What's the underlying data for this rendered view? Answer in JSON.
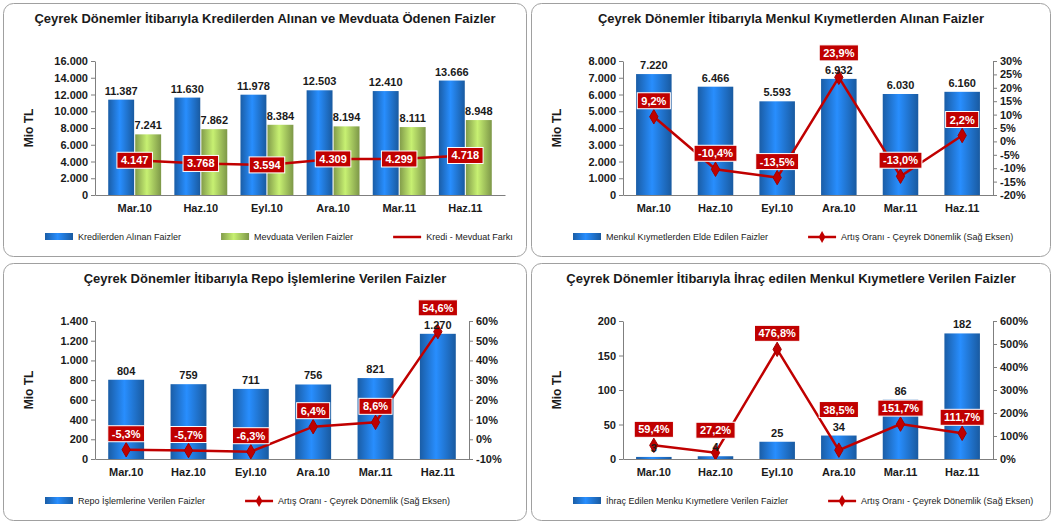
{
  "chart_data": [
    {
      "type": "bar",
      "title": "Çeyrek Dönemler İtibarıyla Kredilerden Alınan ve Mevduata Ödenen Faizler",
      "y_label": "Mio TL",
      "categories": [
        "Mar.10",
        "Haz.10",
        "Eyl.10",
        "Ara.10",
        "Mar.11",
        "Haz.11"
      ],
      "series": [
        {
          "name": "Kredilerden Alınan Faizler",
          "type": "bar",
          "color": "#1f6fc6",
          "values": [
            11387,
            11630,
            11978,
            12503,
            12410,
            13666
          ],
          "value_labels": [
            "11.387",
            "11.630",
            "11.978",
            "12.503",
            "12.410",
            "13.666"
          ]
        },
        {
          "name": "Mevduata Verilen Faizler",
          "type": "bar",
          "color": "#9bbb59",
          "values": [
            7241,
            7862,
            8384,
            8194,
            8111,
            8948
          ],
          "value_labels": [
            "7.241",
            "7.862",
            "8.384",
            "8.194",
            "8.111",
            "8.948"
          ]
        },
        {
          "name": "Kredi - Mevduat Farkı",
          "type": "line",
          "color": "#c00000",
          "line_style": "solid",
          "values": [
            4147,
            3768,
            3594,
            4309,
            4299,
            4718
          ],
          "value_labels": [
            "4.147",
            "3.768",
            "3.594",
            "4.309",
            "4.299",
            "4.718"
          ]
        }
      ],
      "ylim": [
        0,
        16000
      ],
      "yticks": [
        0,
        {
          "value": 2000,
          "label": "2.000"
        },
        {
          "value": 4000,
          "label": "4.000"
        },
        {
          "value": 6000,
          "label": "6.000"
        },
        {
          "value": 8000,
          "label": "8.000"
        },
        {
          "value": 10000,
          "label": "10.000"
        },
        {
          "value": 12000,
          "label": "12.000"
        },
        {
          "value": 14000,
          "label": "14.000"
        },
        {
          "value": 16000,
          "label": "16.000"
        }
      ],
      "grid": false,
      "legend": "bottom",
      "data_labels": true
    },
    {
      "type": "bar",
      "title": "Çeyrek Dönemler İtibarıyla Menkul Kıymetlerden Alınan Faizler",
      "y_label": "Mio TL",
      "categories": [
        "Mar.10",
        "Haz.10",
        "Eyl.10",
        "Ara.10",
        "Mar.11",
        "Haz.11"
      ],
      "series": [
        {
          "name": "Menkul Kıymetlerden Elde Edilen Faizler",
          "type": "bar",
          "color": "#1f6fc6",
          "values": [
            7220,
            6466,
            5593,
            6932,
            6030,
            6160
          ],
          "value_labels": [
            "7.220",
            "6.466",
            "5.593",
            "6.932",
            "6.030",
            "6.160"
          ]
        },
        {
          "name": "Artış Oranı - Çeyrek Dönemlik (Sağ Eksen)",
          "type": "line",
          "axis": "y2",
          "color": "#c00000",
          "marker": "diamond",
          "line_style": "solid",
          "values": [
            9.2,
            -10.4,
            -13.5,
            23.9,
            -13.0,
            2.2
          ],
          "value_labels": [
            "9,2%",
            "-10,4%",
            "-13,5%",
            "23,9%",
            "-13,0%",
            "2,2%"
          ]
        }
      ],
      "ylim": [
        0,
        8000
      ],
      "yticks": [
        0,
        {
          "value": 1000,
          "label": "1.000"
        },
        {
          "value": 2000,
          "label": "2.000"
        },
        {
          "value": 3000,
          "label": "3.000"
        },
        {
          "value": 4000,
          "label": "4.000"
        },
        {
          "value": 5000,
          "label": "5.000"
        },
        {
          "value": 6000,
          "label": "6.000"
        },
        {
          "value": 7000,
          "label": "7.000"
        },
        {
          "value": 8000,
          "label": "8.000"
        }
      ],
      "y2lim": [
        -20,
        30
      ],
      "y2ticks": [
        {
          "value": -20,
          "label": "-20%"
        },
        {
          "value": -15,
          "label": "-15%"
        },
        {
          "value": -10,
          "label": "-10%"
        },
        {
          "value": -5,
          "label": "-5%"
        },
        {
          "value": 0,
          "label": "0%"
        },
        {
          "value": 5,
          "label": "5%"
        },
        {
          "value": 10,
          "label": "10%"
        },
        {
          "value": 15,
          "label": "15%"
        },
        {
          "value": 20,
          "label": "20%"
        },
        {
          "value": 25,
          "label": "25%"
        },
        {
          "value": 30,
          "label": "30%"
        }
      ],
      "grid": false,
      "legend": "bottom",
      "data_labels": true
    },
    {
      "type": "bar",
      "title": "Çeyrek Dönemler İtibarıyla Repo İşlemlerine Verilen Faizler",
      "y_label": "Mio TL",
      "categories": [
        "Mar.10",
        "Haz.10",
        "Eyl.10",
        "Ara.10",
        "Mar.11",
        "Haz.11"
      ],
      "series": [
        {
          "name": "Repo İşlemlerine Verilen Faizler",
          "type": "bar",
          "color": "#1f6fc6",
          "values": [
            804,
            759,
            711,
            756,
            821,
            1270
          ],
          "value_labels": [
            "804",
            "759",
            "711",
            "756",
            "821",
            "1.270"
          ]
        },
        {
          "name": "Artış Oranı - Çeyrek Dönemlik (Sağ Eksen)",
          "type": "line",
          "axis": "y2",
          "color": "#c00000",
          "marker": "diamond",
          "line_style": "solid",
          "values": [
            -5.3,
            -5.7,
            -6.3,
            6.4,
            8.6,
            54.6
          ],
          "value_labels": [
            "-5,3%",
            "-5,7%",
            "-6,3%",
            "6,4%",
            "8,6%",
            "54,6%"
          ]
        }
      ],
      "ylim": [
        0,
        1400
      ],
      "yticks": [
        0,
        200,
        400,
        600,
        800,
        {
          "value": 1000,
          "label": "1.000"
        },
        {
          "value": 1200,
          "label": "1.200"
        },
        {
          "value": 1400,
          "label": "1.400"
        }
      ],
      "y2lim": [
        -10,
        60
      ],
      "y2ticks": [
        {
          "value": -10,
          "label": "-10%"
        },
        {
          "value": 0,
          "label": "0%"
        },
        {
          "value": 10,
          "label": "10%"
        },
        {
          "value": 20,
          "label": "20%"
        },
        {
          "value": 30,
          "label": "30%"
        },
        {
          "value": 40,
          "label": "40%"
        },
        {
          "value": 50,
          "label": "50%"
        },
        {
          "value": 60,
          "label": "60%"
        }
      ],
      "grid": false,
      "legend": "bottom",
      "data_labels": true
    },
    {
      "type": "bar",
      "title": "Çeyrek Dönemler İtibarıyla İhraç edilen Menkul Kıymetlere Verilen Faizler",
      "y_label": "Mio TL",
      "categories": [
        "Mar.10",
        "Haz.10",
        "Eyl.10",
        "Ara.10",
        "Mar.11",
        "Haz.11"
      ],
      "series": [
        {
          "name": "İhraç Edilen Menku Kıymetlere Verilen Faizler",
          "type": "bar",
          "color": "#1f6fc6",
          "values": [
            3,
            4,
            25,
            34,
            86,
            182
          ]
        },
        {
          "name": "Artış Oranı - Çeyrek Dönemlik (Sağ Eksen)",
          "type": "line",
          "axis": "y2",
          "color": "#c00000",
          "marker": "diamond",
          "line_style": "solid",
          "values": [
            59.4,
            27.2,
            476.8,
            38.5,
            151.7,
            111.7
          ],
          "value_labels": [
            "59,4%",
            "27,2%",
            "476,8%",
            "38,5%",
            "151,7%",
            "111,7%"
          ]
        }
      ],
      "ylim": [
        0,
        200
      ],
      "yticks": [
        0,
        50,
        100,
        150,
        200
      ],
      "y2lim": [
        0,
        600
      ],
      "y2ticks": [
        {
          "value": 0,
          "label": "0%"
        },
        {
          "value": 100,
          "label": "100%"
        },
        {
          "value": 200,
          "label": "200%"
        },
        {
          "value": 300,
          "label": "300%"
        },
        {
          "value": 400,
          "label": "400%"
        },
        {
          "value": 500,
          "label": "500%"
        },
        {
          "value": 600,
          "label": "600%"
        }
      ],
      "grid": false,
      "legend": "bottom",
      "data_labels": true
    }
  ]
}
